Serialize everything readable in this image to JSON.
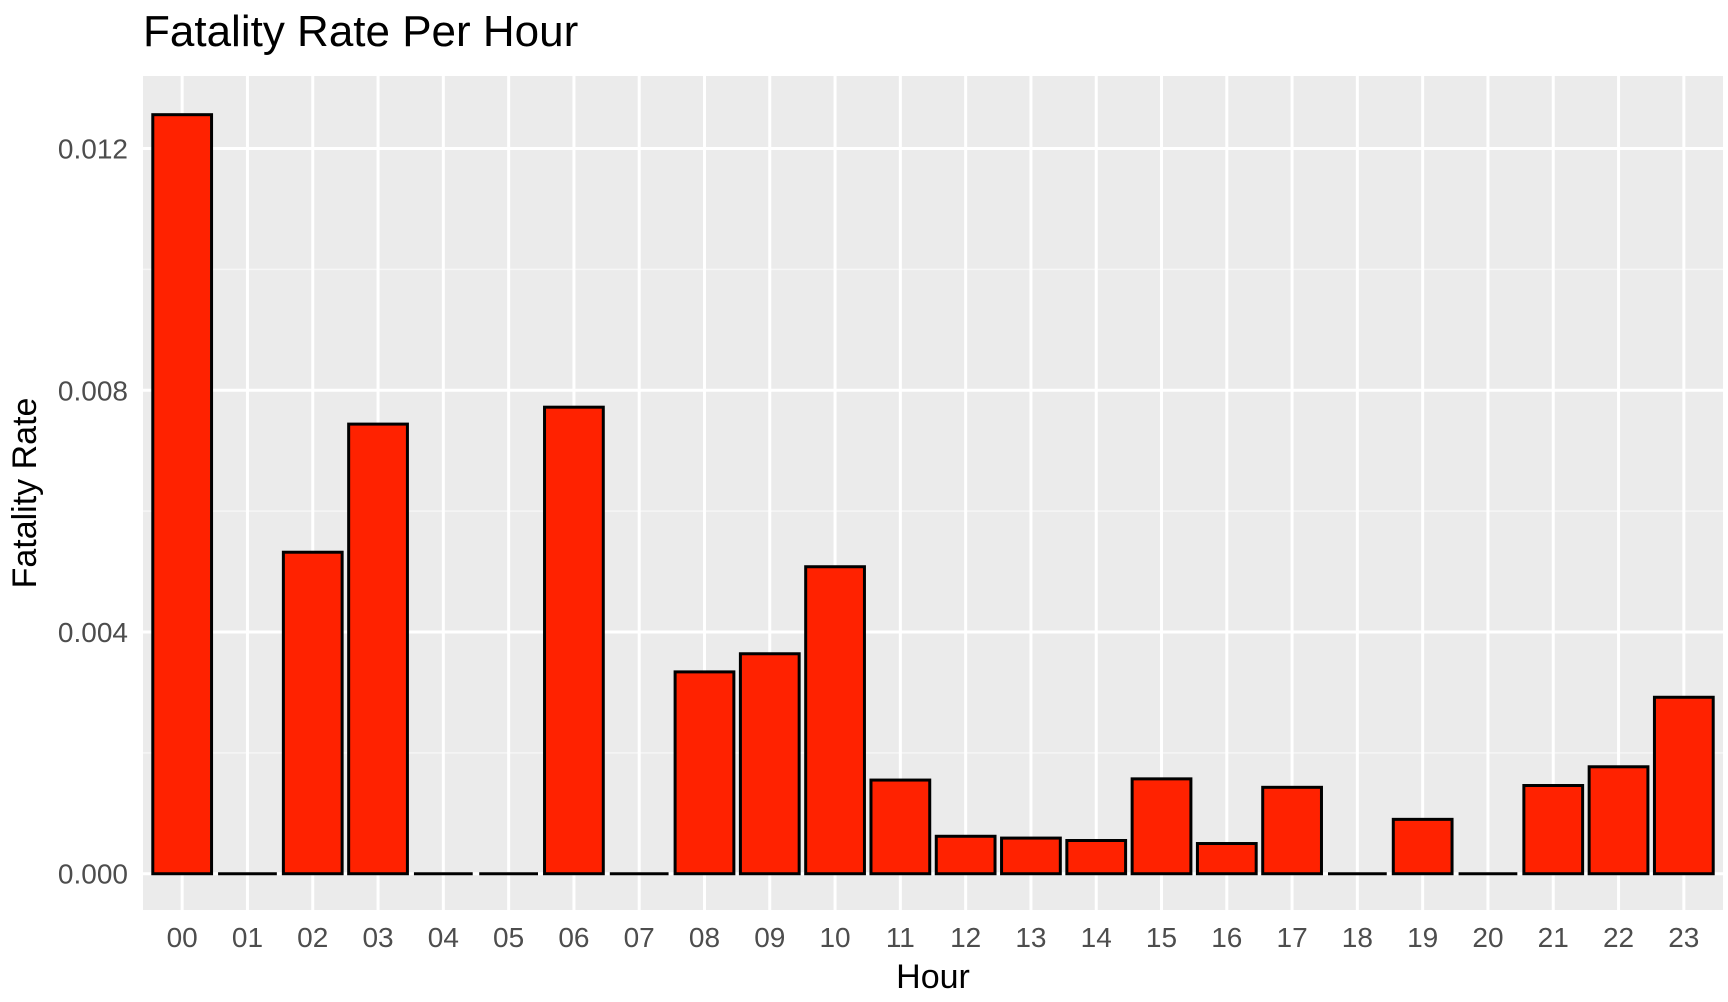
{
  "chart_data": {
    "type": "bar",
    "title": "Fatality Rate Per Hour",
    "xlabel": "Hour",
    "ylabel": "Fatality Rate",
    "categories": [
      "00",
      "01",
      "02",
      "03",
      "04",
      "05",
      "06",
      "07",
      "08",
      "09",
      "10",
      "11",
      "12",
      "13",
      "14",
      "15",
      "16",
      "17",
      "18",
      "19",
      "20",
      "21",
      "22",
      "23"
    ],
    "values": [
      0.01256,
      0.0,
      0.00532,
      0.00744,
      0.0,
      0.0,
      0.00772,
      0.0,
      0.00334,
      0.00364,
      0.00508,
      0.00155,
      0.00062,
      0.00059,
      0.00055,
      0.00157,
      0.0005,
      0.00143,
      0.0,
      0.0009,
      0.0,
      0.00146,
      0.00177,
      0.00292
    ],
    "yticks": [
      "0.000",
      "0.004",
      "0.008",
      "0.012"
    ],
    "ytick_values": [
      0,
      0.004,
      0.008,
      0.012
    ],
    "ylim": [
      -0.0006,
      0.0132
    ],
    "grid": true,
    "colors": {
      "bar_fill": "#ff2200",
      "bar_stroke": "#000000",
      "panel_background": "#ebebeb",
      "grid_major": "#ffffff",
      "grid_minor": "#f6f6f6"
    }
  }
}
